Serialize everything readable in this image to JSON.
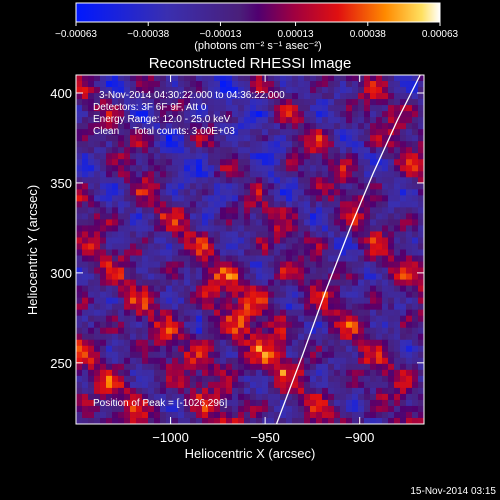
{
  "chart_data": {
    "type": "heatmap",
    "title": "Reconstructed RHESSI Image",
    "xlabel": "Heliocentric X (arcsec)",
    "ylabel": "Heliocentric Y (arcsec)",
    "xlim": [
      -1050,
      -866
    ],
    "ylim": [
      216,
      410
    ],
    "x_ticks": [
      -1000,
      -950,
      -900
    ],
    "x_tick_labels": [
      "−1000",
      "−950",
      "−900"
    ],
    "y_ticks": [
      250,
      300,
      350,
      400
    ],
    "y_tick_labels": [
      "250",
      "300",
      "350",
      "400"
    ],
    "colorbar": {
      "ticks": [
        -0.00063,
        -0.00038,
        -0.00013,
        0.00013,
        0.00038,
        0.00063
      ],
      "tick_labels": [
        "−0.00063",
        "−0.00038",
        "−0.00013",
        "0.00013",
        "0.00038",
        "0.00063"
      ],
      "range": [
        -0.00063,
        0.00063
      ],
      "unit_label": "(photons cm⁻² s⁻¹ asec⁻²)"
    },
    "annotations": [
      "3-Nov-2014 04:30:22.000 to 04:36:22.000",
      "Detectors: 3F 6F 9F, Att 0",
      "Energy Range: 12.0 - 25.0 keV",
      "Clean     Total counts: 3.00E+03",
      "Position of Peak = [-1026,296]"
    ],
    "limb_curve": [
      [
        -944,
        216
      ],
      [
        -930,
        255
      ],
      [
        -918,
        290
      ],
      [
        -905,
        325
      ],
      [
        -893,
        355
      ],
      [
        -880,
        385
      ],
      [
        -868,
        410
      ]
    ],
    "grid": false,
    "colors": {
      "background": "#000000",
      "axes": "#ffffff",
      "limb": "#ffffff"
    }
  },
  "footer": {
    "date": "15-Nov-2014 03:15"
  }
}
